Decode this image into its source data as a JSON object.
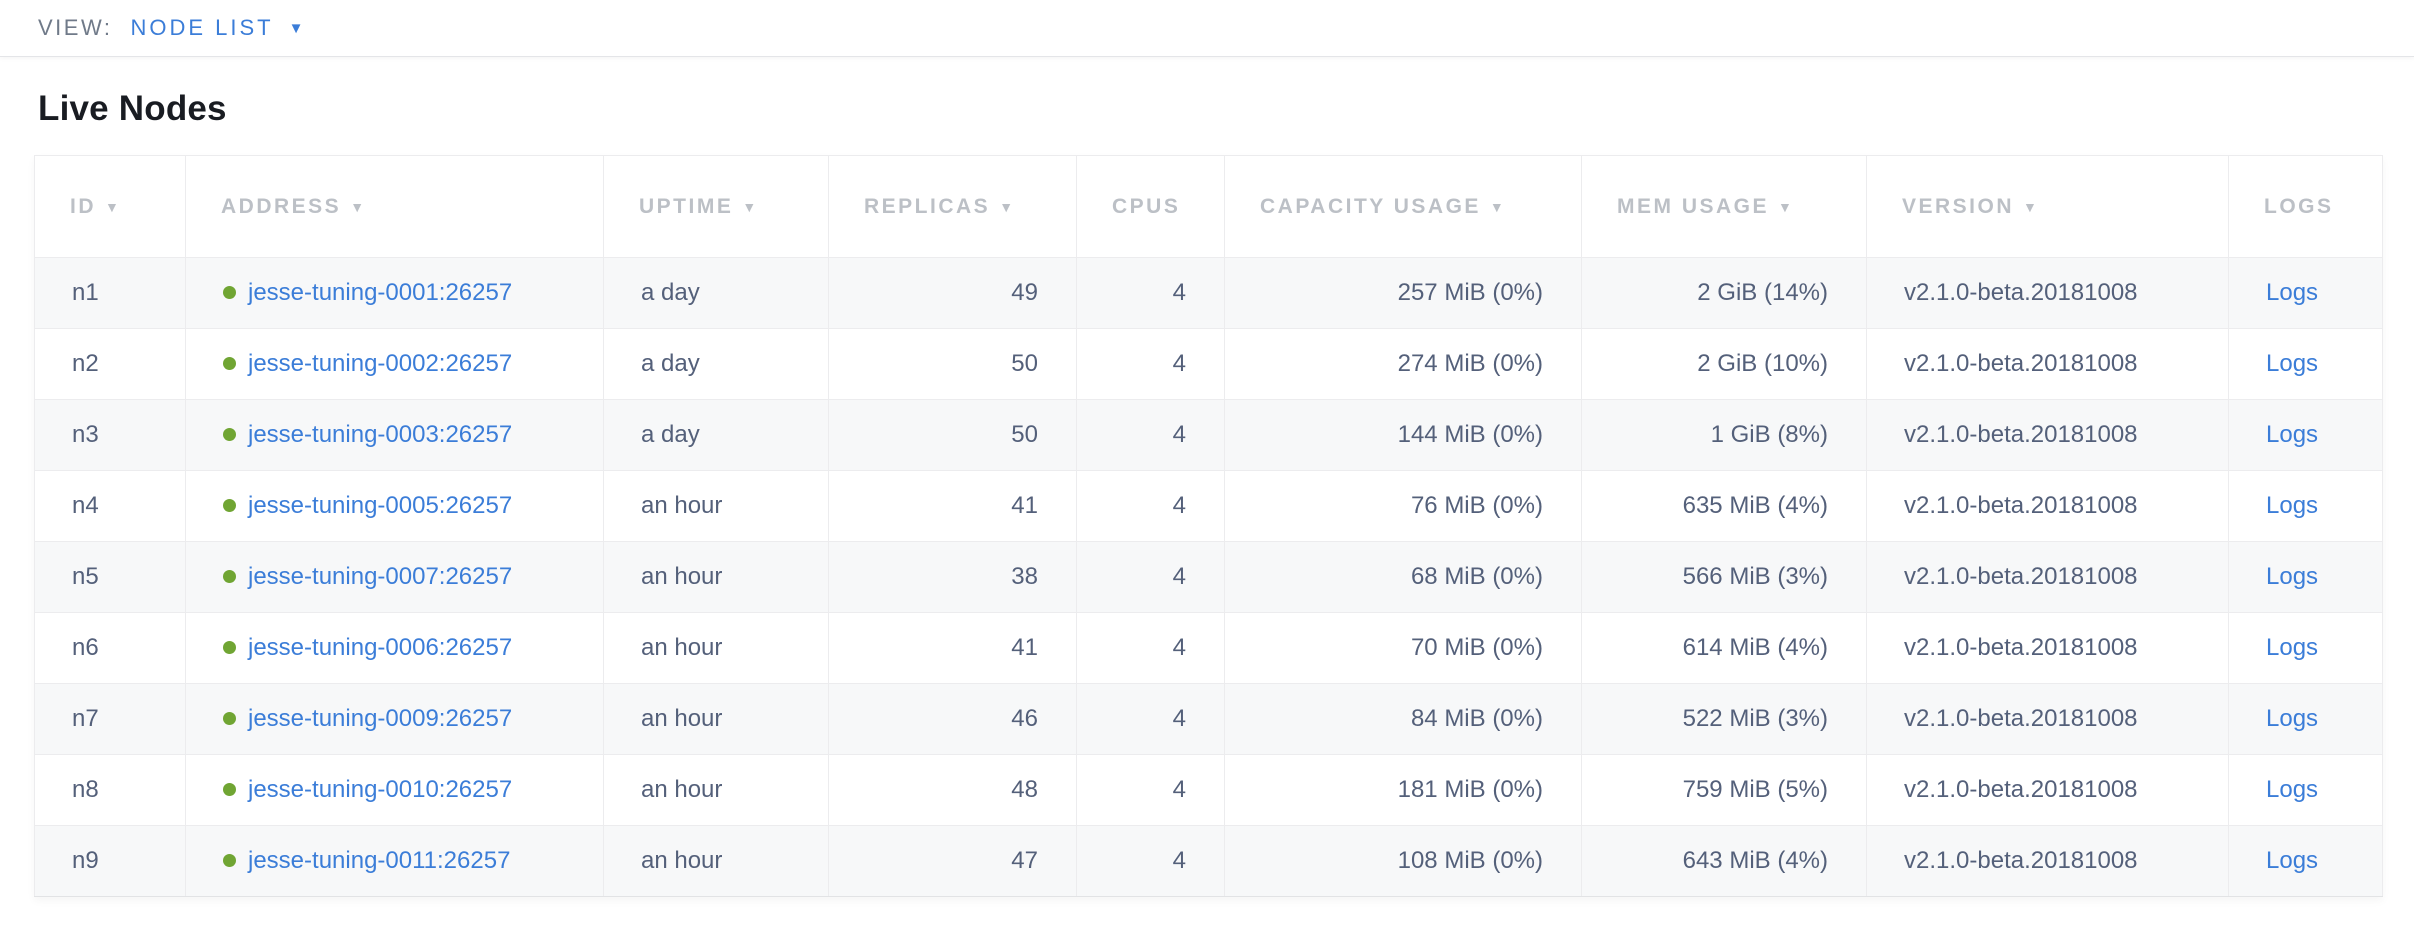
{
  "toolbar": {
    "view_label": "VIEW:",
    "view_value": "NODE LIST"
  },
  "page": {
    "title": "Live Nodes"
  },
  "table": {
    "sort_icon": "▼",
    "columns": [
      {
        "key": "id",
        "label": "ID",
        "sortable": true,
        "align": "left"
      },
      {
        "key": "address",
        "label": "ADDRESS",
        "sortable": true,
        "align": "left"
      },
      {
        "key": "uptime",
        "label": "UPTIME",
        "sortable": true,
        "align": "left"
      },
      {
        "key": "replicas",
        "label": "REPLICAS",
        "sortable": true,
        "align": "right"
      },
      {
        "key": "cpus",
        "label": "CPUS",
        "sortable": false,
        "align": "right"
      },
      {
        "key": "capacity",
        "label": "CAPACITY USAGE",
        "sortable": true,
        "align": "right"
      },
      {
        "key": "mem",
        "label": "MEM USAGE",
        "sortable": true,
        "align": "right"
      },
      {
        "key": "version",
        "label": "VERSION",
        "sortable": true,
        "align": "left"
      },
      {
        "key": "logs",
        "label": "LOGS",
        "sortable": false,
        "align": "left"
      }
    ],
    "rows": [
      {
        "id": "n1",
        "address": "jesse-tuning-0001:26257",
        "uptime": "a day",
        "replicas": "49",
        "cpus": "4",
        "capacity": "257 MiB (0%)",
        "mem": "2 GiB (14%)",
        "version": "v2.1.0-beta.20181008",
        "logs": "Logs"
      },
      {
        "id": "n2",
        "address": "jesse-tuning-0002:26257",
        "uptime": "a day",
        "replicas": "50",
        "cpus": "4",
        "capacity": "274 MiB (0%)",
        "mem": "2 GiB (10%)",
        "version": "v2.1.0-beta.20181008",
        "logs": "Logs"
      },
      {
        "id": "n3",
        "address": "jesse-tuning-0003:26257",
        "uptime": "a day",
        "replicas": "50",
        "cpus": "4",
        "capacity": "144 MiB (0%)",
        "mem": "1 GiB (8%)",
        "version": "v2.1.0-beta.20181008",
        "logs": "Logs"
      },
      {
        "id": "n4",
        "address": "jesse-tuning-0005:26257",
        "uptime": "an hour",
        "replicas": "41",
        "cpus": "4",
        "capacity": "76 MiB (0%)",
        "mem": "635 MiB (4%)",
        "version": "v2.1.0-beta.20181008",
        "logs": "Logs"
      },
      {
        "id": "n5",
        "address": "jesse-tuning-0007:26257",
        "uptime": "an hour",
        "replicas": "38",
        "cpus": "4",
        "capacity": "68 MiB (0%)",
        "mem": "566 MiB (3%)",
        "version": "v2.1.0-beta.20181008",
        "logs": "Logs"
      },
      {
        "id": "n6",
        "address": "jesse-tuning-0006:26257",
        "uptime": "an hour",
        "replicas": "41",
        "cpus": "4",
        "capacity": "70 MiB (0%)",
        "mem": "614 MiB (4%)",
        "version": "v2.1.0-beta.20181008",
        "logs": "Logs"
      },
      {
        "id": "n7",
        "address": "jesse-tuning-0009:26257",
        "uptime": "an hour",
        "replicas": "46",
        "cpus": "4",
        "capacity": "84 MiB (0%)",
        "mem": "522 MiB (3%)",
        "version": "v2.1.0-beta.20181008",
        "logs": "Logs"
      },
      {
        "id": "n8",
        "address": "jesse-tuning-0010:26257",
        "uptime": "an hour",
        "replicas": "48",
        "cpus": "4",
        "capacity": "181 MiB (0%)",
        "mem": "759 MiB (5%)",
        "version": "v2.1.0-beta.20181008",
        "logs": "Logs"
      },
      {
        "id": "n9",
        "address": "jesse-tuning-0011:26257",
        "uptime": "an hour",
        "replicas": "47",
        "cpus": "4",
        "capacity": "108 MiB (0%)",
        "mem": "643 MiB (4%)",
        "version": "v2.1.0-beta.20181008",
        "logs": "Logs"
      }
    ],
    "status_icon": "green-dot"
  },
  "colors": {
    "link_blue": "#3b7dd8",
    "healthy_green": "#70a533",
    "header_text": "#bcc0c6",
    "body_text": "#54607a",
    "muted_label": "#707a89",
    "row_alt_bg": "#f7f8f9",
    "border": "#ececee",
    "title_text": "#191c22"
  }
}
